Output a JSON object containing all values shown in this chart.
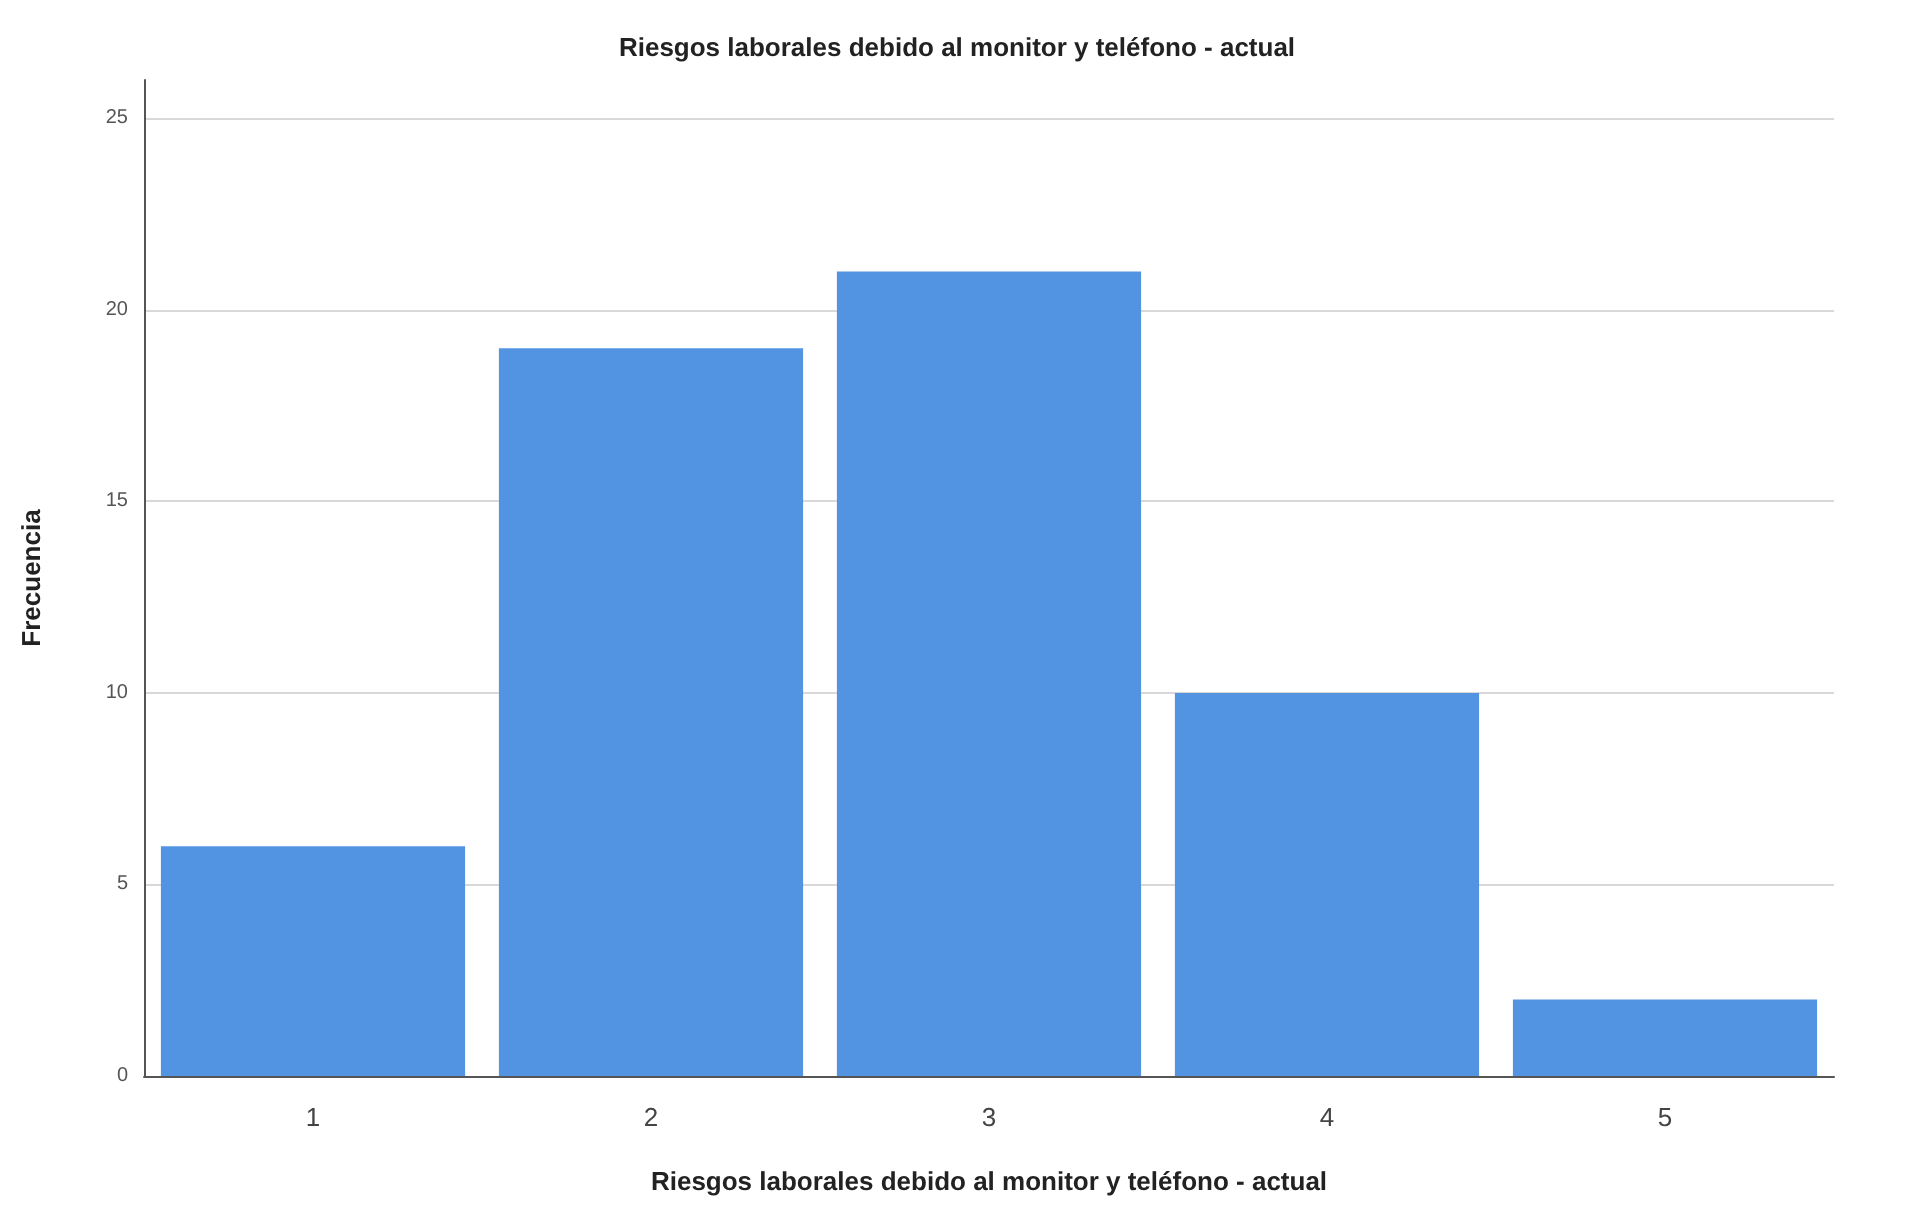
{
  "chart_data": {
    "type": "bar",
    "title": "Riesgos laborales debido al monitor y teléfono - actual",
    "xlabel": "Riesgos laborales debido al monitor y teléfono - actual",
    "ylabel": "Frecuencia",
    "categories": [
      "1",
      "2",
      "3",
      "4",
      "5"
    ],
    "values": [
      6,
      19,
      21,
      10,
      2
    ],
    "color": "#5294e2",
    "ylim": [
      0,
      26
    ],
    "yticks": [
      0,
      5,
      10,
      15,
      20,
      25
    ],
    "grid": "y"
  }
}
